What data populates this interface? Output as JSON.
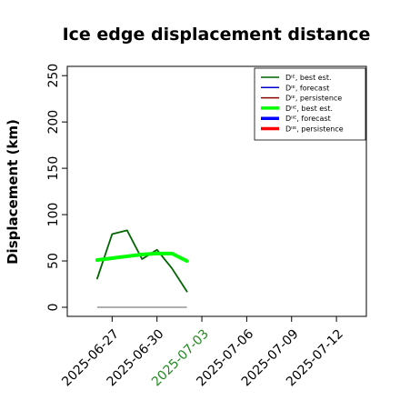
{
  "chart_data": {
    "type": "line",
    "title": "Ice edge displacement distance",
    "ylabel": "Displacement (km)",
    "xlabel": "",
    "ylim": [
      0,
      260
    ],
    "xlim": [
      "2025-06-24",
      "2025-07-14"
    ],
    "grid": false,
    "legend_position": "top-right",
    "yticks": [
      0,
      50,
      100,
      150,
      200,
      250
    ],
    "xticks": [
      "2025-06-27",
      "2025-06-30",
      "2025-07-03",
      "2025-07-06",
      "2025-07-09",
      "2025-07-12"
    ],
    "highlight_xtick": "2025-07-03",
    "highlight_color": "#228B22",
    "series": [
      {
        "name": "Dᴵᴱ, best est.",
        "color": "#006400",
        "style": "thin",
        "x": [
          "2025-06-26",
          "2025-06-27",
          "2025-06-28",
          "2025-06-29",
          "2025-06-30",
          "2025-07-01",
          "2025-07-02"
        ],
        "y": [
          31,
          79,
          83,
          52,
          62,
          42,
          17
        ]
      },
      {
        "name": "Dᴵᴱ, forecast",
        "color": "#0000cd",
        "style": "thin",
        "x": [],
        "y": []
      },
      {
        "name": "Dᴵᴱ, persistence",
        "color": "#8b0000",
        "style": "thin",
        "x": [],
        "y": []
      },
      {
        "name": "Dᴵᴵᴱ, best est.",
        "color": "#00ff00",
        "style": "thick",
        "x": [
          "2025-06-26",
          "2025-06-27",
          "2025-06-28",
          "2025-06-29",
          "2025-06-30",
          "2025-07-01",
          "2025-07-02"
        ],
        "y": [
          51,
          53,
          55,
          57,
          58,
          58,
          50
        ]
      },
      {
        "name": "Dᴵᴵᴱ, forecast",
        "color": "#0000ff",
        "style": "thick",
        "x": [],
        "y": []
      },
      {
        "name": "Dᴵᴵᴱ, persistence",
        "color": "#ff0000",
        "style": "thick",
        "x": [],
        "y": []
      }
    ],
    "reference_line": {
      "color": "#808080",
      "x": [
        "2025-06-26",
        "2025-07-02"
      ],
      "y": [
        0,
        0
      ]
    }
  }
}
